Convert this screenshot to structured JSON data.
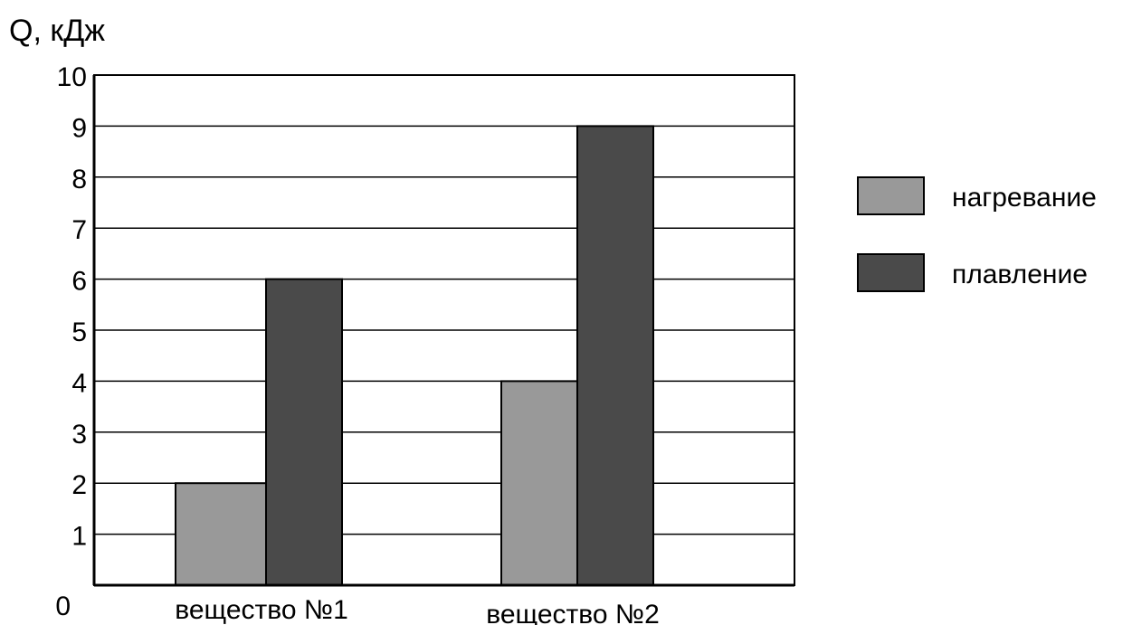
{
  "chart_data": {
    "type": "bar",
    "title": "",
    "ylabel": "Q, кДж",
    "xlabel": "",
    "ylim": [
      0,
      10
    ],
    "y_ticks": [
      "0",
      "1",
      "2",
      "3",
      "4",
      "5",
      "6",
      "7",
      "8",
      "9",
      "10"
    ],
    "categories": [
      "вещество №1",
      "вещество №2"
    ],
    "series": [
      {
        "name": "нагревание",
        "values": [
          2,
          4
        ],
        "color": "#999999"
      },
      {
        "name": "плавление",
        "values": [
          6,
          9
        ],
        "color": "#4a4a4a"
      }
    ],
    "grid": true,
    "legend_position": "right"
  }
}
